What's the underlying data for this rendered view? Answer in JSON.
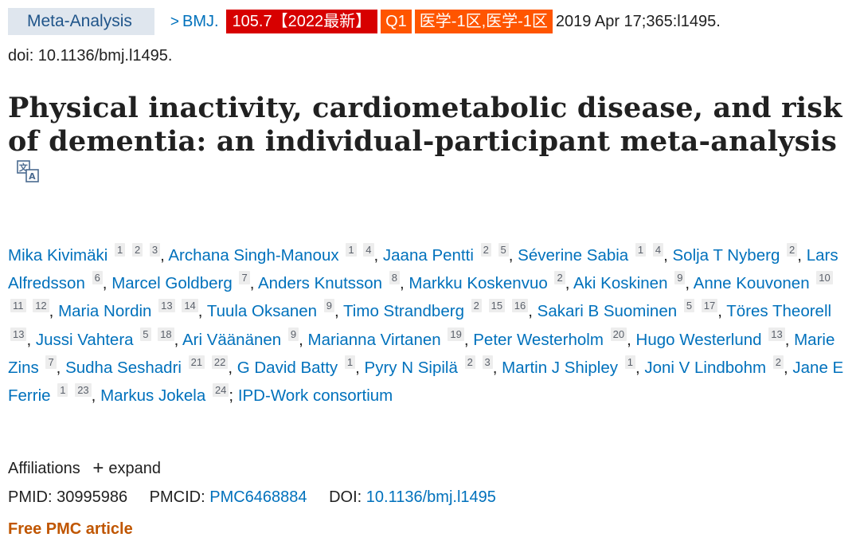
{
  "header": {
    "article_type": "Meta-Analysis",
    "journal": "BMJ.",
    "impact_factor_badge": "105.7【2022最新】",
    "quartile_badge": "Q1",
    "zone_badge": "医学-1区,医学-1区",
    "citation": "2019 Apr 17;365:l1495.",
    "doi_line": "doi: 10.1136/bmj.l1495.",
    "colors": {
      "if_badge": "#d70000",
      "q_badge": "#ff5500",
      "link": "#0071bc",
      "badge_bg": "#dfe6ee"
    }
  },
  "title": "Physical inactivity, cardiometabolic disease, and risk of dementia: an individual-participant meta-analysis",
  "translate_icon": "translate-icon",
  "authors": [
    {
      "name": "Mika Kivimäki",
      "affs": [
        "1",
        "2",
        "3"
      ]
    },
    {
      "name": "Archana Singh-Manoux",
      "affs": [
        "1",
        "4"
      ]
    },
    {
      "name": "Jaana Pentti",
      "affs": [
        "2",
        "5"
      ]
    },
    {
      "name": "Séverine Sabia",
      "affs": [
        "1",
        "4"
      ]
    },
    {
      "name": "Solja T Nyberg",
      "affs": [
        "2"
      ]
    },
    {
      "name": "Lars Alfredsson",
      "affs": [
        "6"
      ]
    },
    {
      "name": "Marcel Goldberg",
      "affs": [
        "7"
      ]
    },
    {
      "name": "Anders Knutsson",
      "affs": [
        "8"
      ]
    },
    {
      "name": "Markku Koskenvuo",
      "affs": [
        "2"
      ]
    },
    {
      "name": "Aki Koskinen",
      "affs": [
        "9"
      ]
    },
    {
      "name": "Anne Kouvonen",
      "affs": [
        "10",
        "11",
        "12"
      ]
    },
    {
      "name": "Maria Nordin",
      "affs": [
        "13",
        "14"
      ]
    },
    {
      "name": "Tuula Oksanen",
      "affs": [
        "9"
      ]
    },
    {
      "name": "Timo Strandberg",
      "affs": [
        "2",
        "15",
        "16"
      ]
    },
    {
      "name": "Sakari B Suominen",
      "affs": [
        "5",
        "17"
      ]
    },
    {
      "name": "Töres Theorell",
      "affs": [
        "13"
      ]
    },
    {
      "name": "Jussi Vahtera",
      "affs": [
        "5",
        "18"
      ]
    },
    {
      "name": "Ari Väänänen",
      "affs": [
        "9"
      ]
    },
    {
      "name": "Marianna Virtanen",
      "affs": [
        "19"
      ]
    },
    {
      "name": "Peter Westerholm",
      "affs": [
        "20"
      ]
    },
    {
      "name": "Hugo Westerlund",
      "affs": [
        "13"
      ]
    },
    {
      "name": "Marie Zins",
      "affs": [
        "7"
      ]
    },
    {
      "name": "Sudha Seshadri",
      "affs": [
        "21",
        "22"
      ]
    },
    {
      "name": "G David Batty",
      "affs": [
        "1"
      ]
    },
    {
      "name": "Pyry N Sipilä",
      "affs": [
        "2",
        "3"
      ]
    },
    {
      "name": "Martin J Shipley",
      "affs": [
        "1"
      ]
    },
    {
      "name": "Joni V Lindbohm",
      "affs": [
        "2"
      ]
    },
    {
      "name": "Jane E Ferrie",
      "affs": [
        "1",
        "23"
      ]
    },
    {
      "name": "Markus Jokela",
      "affs": [
        "24"
      ]
    }
  ],
  "consortium": "IPD-Work consortium",
  "affiliations": {
    "label": "Affiliations",
    "expand_label": "expand"
  },
  "ids": {
    "pmid_label": "PMID:",
    "pmid": "30995986",
    "pmcid_label": "PMCID:",
    "pmcid": "PMC6468884",
    "doi_label": "DOI:",
    "doi": "10.1136/bmj.l1495"
  },
  "free_pmc": "Free PMC article"
}
